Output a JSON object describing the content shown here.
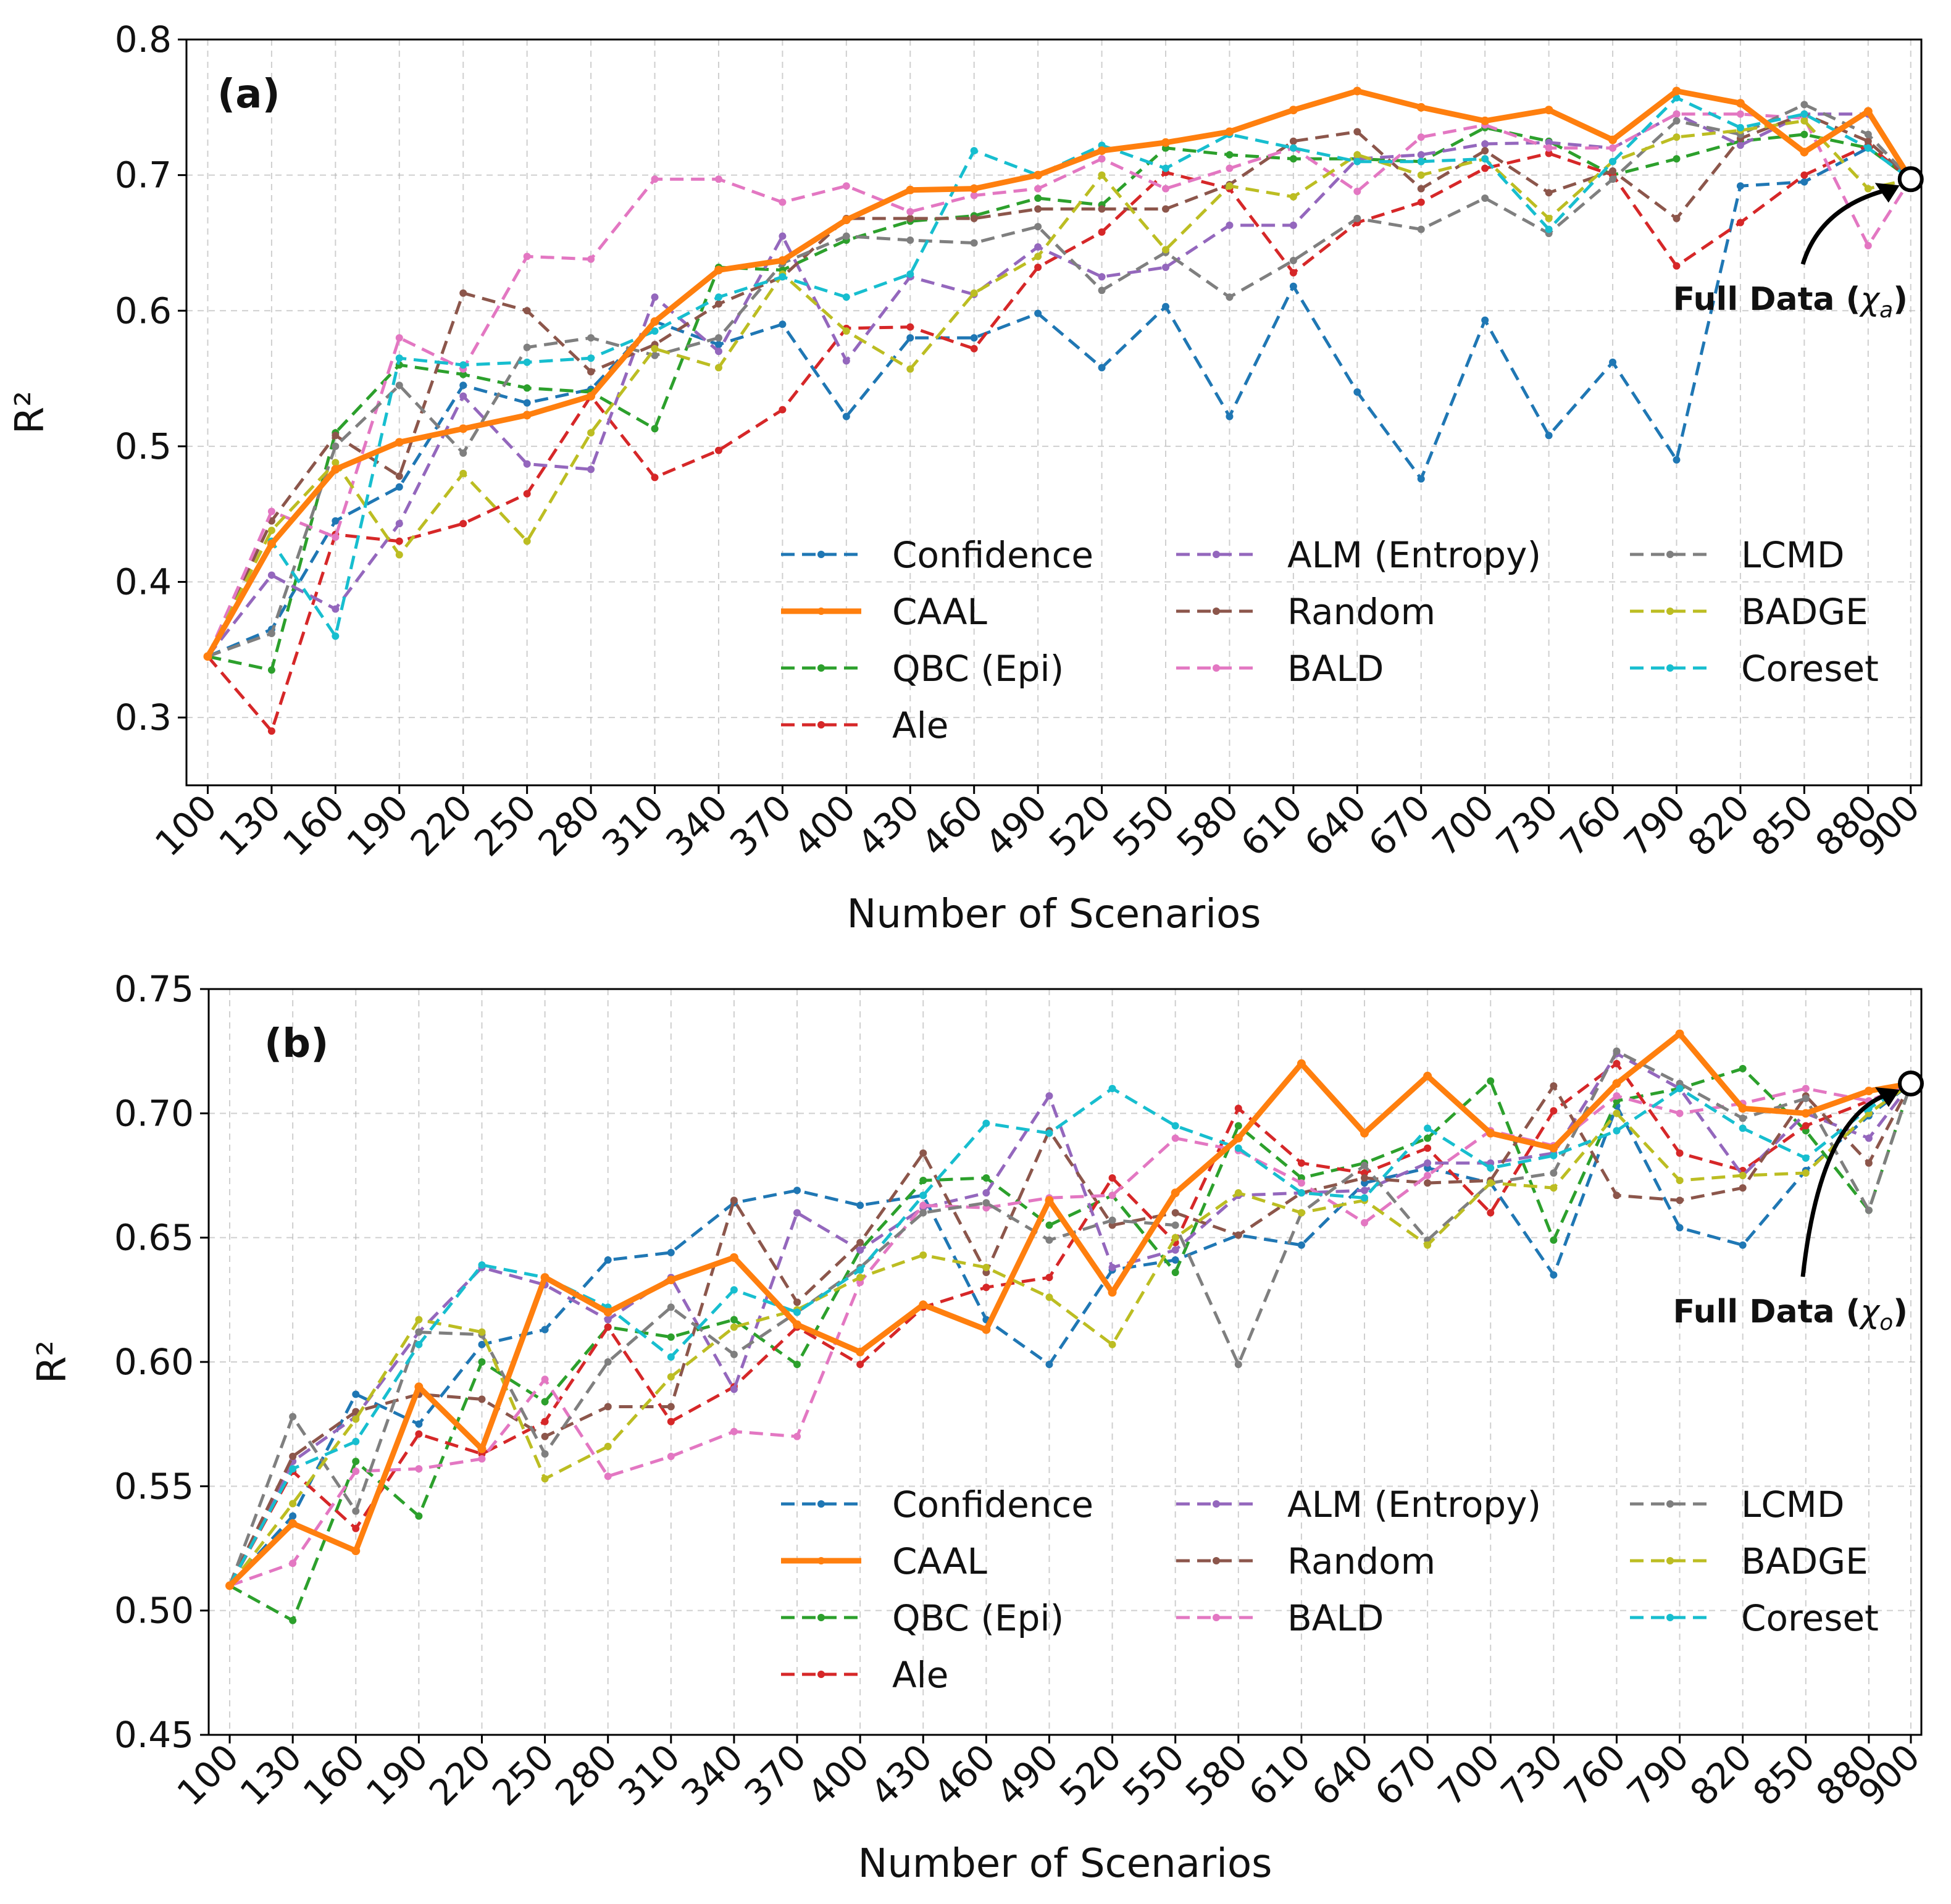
{
  "figure": {
    "legend_order": [
      "Confidence",
      "CAAL",
      "QBC (Epi)",
      "Ale",
      "ALM (Entropy)",
      "Random",
      "BALD",
      "LCMD",
      "BADGE",
      "Coreset"
    ]
  },
  "chart_data": [
    {
      "type": "line",
      "panel_label": "(a)",
      "xlabel": "Number of Scenarios",
      "ylabel": "R²",
      "ylim": [
        0.25,
        0.8
      ],
      "yticks": [
        "0.3",
        "0.4",
        "0.5",
        "0.6",
        "0.7",
        "0.8"
      ],
      "ytick_values": [
        0.3,
        0.4,
        0.5,
        0.6,
        0.7,
        0.8
      ],
      "x": [
        100,
        130,
        160,
        190,
        220,
        250,
        280,
        310,
        340,
        370,
        400,
        430,
        460,
        490,
        520,
        550,
        580,
        610,
        640,
        670,
        700,
        730,
        760,
        790,
        820,
        850,
        880,
        900
      ],
      "xticks": [
        "100",
        "130",
        "160",
        "190",
        "220",
        "250",
        "280",
        "310",
        "340",
        "370",
        "400",
        "430",
        "460",
        "490",
        "520",
        "550",
        "580",
        "610",
        "640",
        "670",
        "700",
        "730",
        "760",
        "790",
        "820",
        "850",
        "880",
        "900"
      ],
      "grid": true,
      "legend_position": "lower-right",
      "annotation": {
        "text_main": "Full Data (",
        "text_sym": "χ",
        "text_sub": "a",
        "text_end": ")",
        "point": [
          900,
          0.697
        ]
      },
      "series": [
        {
          "name": "Confidence",
          "color": "#1f77b4",
          "style": "dashed",
          "values": [
            0.345,
            0.365,
            0.445,
            0.47,
            0.545,
            0.532,
            0.542,
            0.592,
            0.575,
            0.59,
            0.522,
            0.58,
            0.58,
            0.598,
            0.558,
            0.603,
            0.522,
            0.618,
            0.54,
            0.476,
            0.593,
            0.508,
            0.562,
            0.49,
            0.692,
            0.695,
            0.72,
            0.697
          ]
        },
        {
          "name": "CAAL",
          "color": "#ff7f0e",
          "style": "solid",
          "values": [
            0.345,
            0.428,
            0.483,
            0.503,
            0.513,
            0.523,
            0.537,
            0.592,
            0.63,
            0.637,
            0.667,
            0.689,
            0.69,
            0.7,
            0.718,
            0.724,
            0.732,
            0.748,
            0.762,
            0.75,
            0.74,
            0.748,
            0.726,
            0.762,
            0.753,
            0.717,
            0.747,
            0.697
          ]
        },
        {
          "name": "QBC (Epi)",
          "color": "#2ca02c",
          "style": "dashed",
          "values": [
            0.345,
            0.335,
            0.51,
            0.56,
            0.553,
            0.543,
            0.54,
            0.513,
            0.632,
            0.63,
            0.652,
            0.666,
            0.67,
            0.683,
            0.678,
            0.72,
            0.715,
            0.712,
            0.712,
            0.71,
            0.735,
            0.725,
            0.7,
            0.712,
            0.725,
            0.73,
            0.72,
            0.697
          ]
        },
        {
          "name": "Ale",
          "color": "#d62728",
          "style": "dashed",
          "values": [
            0.345,
            0.29,
            0.435,
            0.43,
            0.443,
            0.465,
            0.537,
            0.477,
            0.497,
            0.527,
            0.587,
            0.588,
            0.572,
            0.632,
            0.658,
            0.702,
            0.69,
            0.628,
            0.665,
            0.68,
            0.705,
            0.716,
            0.7,
            0.633,
            0.665,
            0.7,
            0.722,
            0.697
          ]
        },
        {
          "name": "ALM (Entropy)",
          "color": "#9467bd",
          "style": "dashed",
          "values": [
            0.345,
            0.405,
            0.38,
            0.443,
            0.537,
            0.487,
            0.483,
            0.61,
            0.57,
            0.655,
            0.563,
            0.625,
            0.612,
            0.647,
            0.625,
            0.632,
            0.663,
            0.663,
            0.712,
            0.715,
            0.723,
            0.724,
            0.72,
            0.745,
            0.722,
            0.745,
            0.745,
            0.697
          ]
        },
        {
          "name": "Random",
          "color": "#8c564b",
          "style": "dashed",
          "values": [
            0.345,
            0.445,
            0.508,
            0.478,
            0.613,
            0.6,
            0.555,
            0.575,
            0.605,
            0.625,
            0.668,
            0.668,
            0.668,
            0.675,
            0.675,
            0.675,
            0.693,
            0.725,
            0.732,
            0.69,
            0.718,
            0.687,
            0.703,
            0.668,
            0.727,
            0.745,
            0.725,
            0.697
          ]
        },
        {
          "name": "BALD",
          "color": "#e377c2",
          "style": "dashed",
          "values": [
            0.345,
            0.452,
            0.433,
            0.58,
            0.557,
            0.64,
            0.638,
            0.697,
            0.697,
            0.68,
            0.692,
            0.673,
            0.685,
            0.69,
            0.712,
            0.69,
            0.705,
            0.72,
            0.688,
            0.728,
            0.737,
            0.72,
            0.72,
            0.745,
            0.745,
            0.742,
            0.648,
            0.697
          ]
        },
        {
          "name": "LCMD",
          "color": "#7f7f7f",
          "style": "dashed",
          "values": [
            0.345,
            0.362,
            0.5,
            0.545,
            0.495,
            0.573,
            0.58,
            0.567,
            0.58,
            0.635,
            0.655,
            0.652,
            0.65,
            0.662,
            0.615,
            0.643,
            0.61,
            0.637,
            0.668,
            0.66,
            0.683,
            0.657,
            0.697,
            0.74,
            0.73,
            0.752,
            0.73,
            0.697
          ]
        },
        {
          "name": "BADGE",
          "color": "#bcbd22",
          "style": "dashed",
          "values": [
            0.345,
            0.438,
            0.488,
            0.42,
            0.48,
            0.43,
            0.51,
            0.572,
            0.558,
            0.627,
            0.585,
            0.557,
            0.613,
            0.64,
            0.7,
            0.645,
            0.692,
            0.684,
            0.715,
            0.7,
            0.712,
            0.668,
            0.71,
            0.728,
            0.733,
            0.74,
            0.69,
            0.697
          ]
        },
        {
          "name": "Coreset",
          "color": "#17becf",
          "style": "dashed",
          "values": [
            0.345,
            0.43,
            0.36,
            0.565,
            0.56,
            0.562,
            0.565,
            0.585,
            0.61,
            0.625,
            0.61,
            0.627,
            0.718,
            0.7,
            0.722,
            0.705,
            0.73,
            0.72,
            0.71,
            0.71,
            0.712,
            0.66,
            0.71,
            0.757,
            0.735,
            0.745,
            0.72,
            0.697
          ]
        }
      ]
    },
    {
      "type": "line",
      "panel_label": "(b)",
      "xlabel": "Number of Scenarios",
      "ylabel": "R²",
      "ylim": [
        0.45,
        0.75
      ],
      "yticks": [
        "0.45",
        "0.50",
        "0.55",
        "0.60",
        "0.65",
        "0.70",
        "0.75"
      ],
      "ytick_values": [
        0.45,
        0.5,
        0.55,
        0.6,
        0.65,
        0.7,
        0.75
      ],
      "x": [
        100,
        130,
        160,
        190,
        220,
        250,
        280,
        310,
        340,
        370,
        400,
        430,
        460,
        490,
        520,
        550,
        580,
        610,
        640,
        670,
        700,
        730,
        760,
        790,
        820,
        850,
        880,
        900
      ],
      "xticks": [
        "100",
        "130",
        "160",
        "190",
        "220",
        "250",
        "280",
        "310",
        "340",
        "370",
        "400",
        "430",
        "460",
        "490",
        "520",
        "550",
        "580",
        "610",
        "640",
        "670",
        "700",
        "730",
        "760",
        "790",
        "820",
        "850",
        "880",
        "900"
      ],
      "grid": true,
      "legend_position": "lower-right",
      "annotation": {
        "text_main": "Full Data (",
        "text_sym": "χ",
        "text_sub": "o",
        "text_end": ")",
        "point": [
          900,
          0.712
        ]
      },
      "series": [
        {
          "name": "Confidence",
          "color": "#1f77b4",
          "style": "dashed",
          "values": [
            0.51,
            0.538,
            0.587,
            0.575,
            0.607,
            0.613,
            0.641,
            0.644,
            0.664,
            0.669,
            0.663,
            0.667,
            0.617,
            0.599,
            0.637,
            0.641,
            0.651,
            0.647,
            0.672,
            0.678,
            0.672,
            0.635,
            0.703,
            0.654,
            0.647,
            0.677,
            0.699,
            0.712
          ]
        },
        {
          "name": "CAAL",
          "color": "#ff7f0e",
          "style": "solid",
          "values": [
            0.51,
            0.535,
            0.524,
            0.59,
            0.565,
            0.634,
            0.62,
            0.633,
            0.642,
            0.615,
            0.604,
            0.623,
            0.613,
            0.665,
            0.628,
            0.668,
            0.69,
            0.72,
            0.692,
            0.715,
            0.692,
            0.686,
            0.712,
            0.732,
            0.702,
            0.7,
            0.709,
            0.712
          ]
        },
        {
          "name": "QBC (Epi)",
          "color": "#2ca02c",
          "style": "dashed",
          "values": [
            0.51,
            0.496,
            0.56,
            0.538,
            0.6,
            0.584,
            0.614,
            0.61,
            0.617,
            0.599,
            0.645,
            0.673,
            0.674,
            0.655,
            0.667,
            0.636,
            0.695,
            0.674,
            0.68,
            0.69,
            0.713,
            0.649,
            0.705,
            0.71,
            0.718,
            0.693,
            0.661,
            0.712
          ]
        },
        {
          "name": "Ale",
          "color": "#d62728",
          "style": "dashed",
          "values": [
            0.51,
            0.556,
            0.533,
            0.571,
            0.563,
            0.576,
            0.614,
            0.576,
            0.59,
            0.614,
            0.599,
            0.622,
            0.63,
            0.634,
            0.674,
            0.648,
            0.702,
            0.68,
            0.676,
            0.686,
            0.66,
            0.701,
            0.72,
            0.684,
            0.677,
            0.695,
            0.705,
            0.712
          ]
        },
        {
          "name": "ALM (Entropy)",
          "color": "#9467bd",
          "style": "dashed",
          "values": [
            0.51,
            0.56,
            0.578,
            0.612,
            0.638,
            0.631,
            0.617,
            0.634,
            0.589,
            0.66,
            0.645,
            0.662,
            0.668,
            0.707,
            0.638,
            0.645,
            0.667,
            0.668,
            0.669,
            0.68,
            0.68,
            0.684,
            0.724,
            0.71,
            0.675,
            0.7,
            0.69,
            0.712
          ]
        },
        {
          "name": "Random",
          "color": "#8c564b",
          "style": "dashed",
          "values": [
            0.51,
            0.562,
            0.58,
            0.587,
            0.585,
            0.57,
            0.582,
            0.582,
            0.665,
            0.624,
            0.648,
            0.684,
            0.636,
            0.693,
            0.655,
            0.66,
            0.651,
            0.668,
            0.674,
            0.672,
            0.673,
            0.711,
            0.667,
            0.665,
            0.67,
            0.707,
            0.68,
            0.712
          ]
        },
        {
          "name": "BALD",
          "color": "#e377c2",
          "style": "dashed",
          "values": [
            0.51,
            0.519,
            0.556,
            0.557,
            0.561,
            0.593,
            0.554,
            0.562,
            0.572,
            0.57,
            0.632,
            0.663,
            0.662,
            0.666,
            0.667,
            0.69,
            0.685,
            0.672,
            0.656,
            0.675,
            0.693,
            0.687,
            0.707,
            0.7,
            0.704,
            0.71,
            0.705,
            0.712
          ]
        },
        {
          "name": "LCMD",
          "color": "#7f7f7f",
          "style": "dashed",
          "values": [
            0.51,
            0.578,
            0.54,
            0.612,
            0.611,
            0.563,
            0.6,
            0.622,
            0.603,
            0.62,
            0.638,
            0.66,
            0.664,
            0.649,
            0.657,
            0.655,
            0.599,
            0.66,
            0.679,
            0.649,
            0.672,
            0.676,
            0.725,
            0.712,
            0.698,
            0.706,
            0.661,
            0.712
          ]
        },
        {
          "name": "BADGE",
          "color": "#bcbd22",
          "style": "dashed",
          "values": [
            0.51,
            0.543,
            0.577,
            0.617,
            0.612,
            0.553,
            0.566,
            0.594,
            0.614,
            0.621,
            0.634,
            0.643,
            0.638,
            0.626,
            0.607,
            0.65,
            0.668,
            0.66,
            0.665,
            0.647,
            0.672,
            0.67,
            0.7,
            0.673,
            0.675,
            0.676,
            0.7,
            0.712
          ]
        },
        {
          "name": "Coreset",
          "color": "#17becf",
          "style": "dashed",
          "values": [
            0.51,
            0.557,
            0.568,
            0.607,
            0.639,
            0.634,
            0.622,
            0.602,
            0.629,
            0.62,
            0.637,
            0.667,
            0.696,
            0.692,
            0.71,
            0.695,
            0.686,
            0.668,
            0.666,
            0.694,
            0.678,
            0.683,
            0.693,
            0.71,
            0.694,
            0.682,
            0.702,
            0.712
          ]
        }
      ]
    }
  ]
}
